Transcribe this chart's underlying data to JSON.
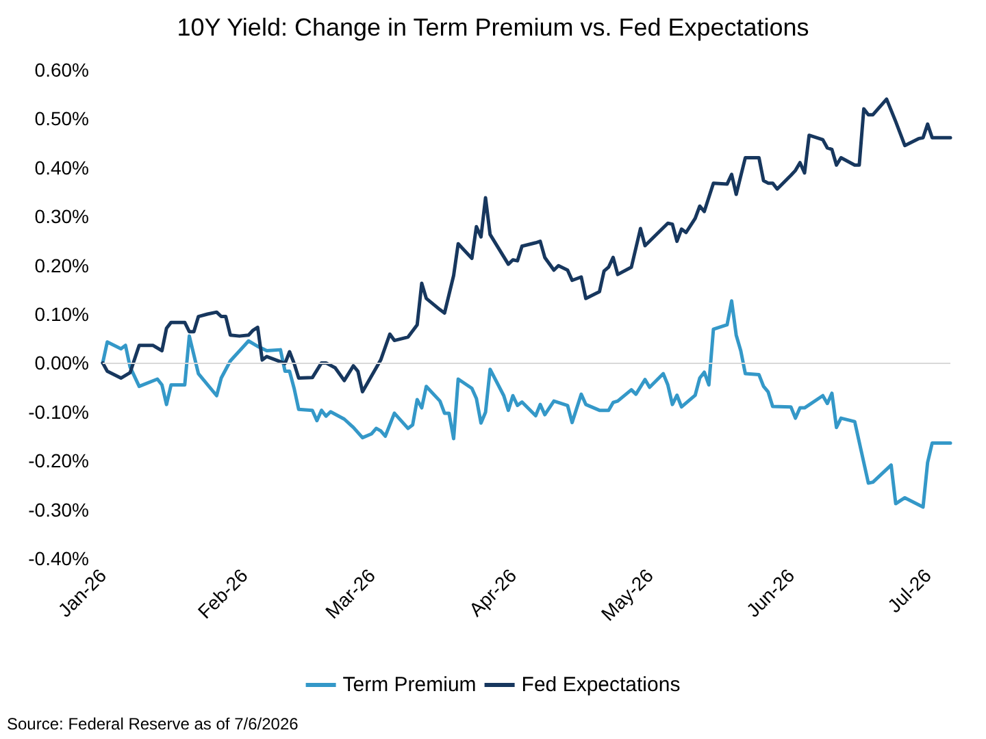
{
  "chart_data": {
    "type": "line",
    "title": "10Y Yield: Change in Term Premium vs. Fed Expectations",
    "annotations": [
      "Source: Federal Reserve as of 7/6/2026"
    ],
    "xlim": [
      "2026-01-01",
      "2026-07-06"
    ],
    "xticks": [
      {
        "value": "2026-01-01",
        "label": "Jan-26"
      },
      {
        "value": "2026-02-01",
        "label": "Feb-26"
      },
      {
        "value": "2026-03-01",
        "label": "Mar-26"
      },
      {
        "value": "2026-04-01",
        "label": "Apr-26"
      },
      {
        "value": "2026-05-01",
        "label": "May-26"
      },
      {
        "value": "2026-06-01",
        "label": "Jun-26"
      },
      {
        "value": "2026-07-01",
        "label": "Jul-26"
      }
    ],
    "ylim": [
      -0.4,
      0.6
    ],
    "yticks": [
      {
        "value": -0.4,
        "label": "-0.40%"
      },
      {
        "value": -0.3,
        "label": "-0.30%"
      },
      {
        "value": -0.2,
        "label": "-0.20%"
      },
      {
        "value": -0.1,
        "label": "-0.10%"
      },
      {
        "value": 0,
        "label": "0.00%"
      },
      {
        "value": 0.1,
        "label": "0.10%"
      },
      {
        "value": 0.2,
        "label": "0.20%"
      },
      {
        "value": 0.3,
        "label": "0.30%"
      },
      {
        "value": 0.4,
        "label": "0.40%"
      },
      {
        "value": 0.5,
        "label": "0.50%"
      },
      {
        "value": 0.6,
        "label": "0.60%"
      }
    ],
    "ref_lines": [
      {
        "axis": "y",
        "value": 0,
        "color": "#d9d9d9",
        "line_style": "solid"
      }
    ],
    "grid": false,
    "legend": "bottom",
    "marker": "none",
    "line_style": "solid",
    "series": [
      {
        "name": "Term Premium",
        "color": "#3498c8",
        "x": [
          "2026-01-01",
          "2026-01-02",
          "2026-01-05",
          "2026-01-06",
          "2026-01-07",
          "2026-01-09",
          "2026-01-13",
          "2026-01-14",
          "2026-01-15",
          "2026-01-16",
          "2026-01-19",
          "2026-01-20",
          "2026-01-22",
          "2026-01-26",
          "2026-01-27",
          "2026-01-29",
          "2026-02-02",
          "2026-02-04",
          "2026-02-06",
          "2026-02-09",
          "2026-02-10",
          "2026-02-11",
          "2026-02-12",
          "2026-02-13",
          "2026-02-16",
          "2026-02-17",
          "2026-02-18",
          "2026-02-19",
          "2026-02-20",
          "2026-02-23",
          "2026-02-25",
          "2026-02-27",
          "2026-03-01",
          "2026-03-02",
          "2026-03-03",
          "2026-03-04",
          "2026-03-06",
          "2026-03-09",
          "2026-03-10",
          "2026-03-11",
          "2026-03-12",
          "2026-03-13",
          "2026-03-16",
          "2026-03-17",
          "2026-03-18",
          "2026-03-19",
          "2026-03-20",
          "2026-03-23",
          "2026-03-24",
          "2026-03-25",
          "2026-03-26",
          "2026-03-27",
          "2026-03-30",
          "2026-03-31",
          "2026-04-01",
          "2026-04-02",
          "2026-04-03",
          "2026-04-06",
          "2026-04-07",
          "2026-04-08",
          "2026-04-10",
          "2026-04-13",
          "2026-04-14",
          "2026-04-16",
          "2026-04-17",
          "2026-04-20",
          "2026-04-22",
          "2026-04-23",
          "2026-04-24",
          "2026-04-27",
          "2026-04-28",
          "2026-04-30",
          "2026-05-01",
          "2026-05-04",
          "2026-05-05",
          "2026-05-06",
          "2026-05-07",
          "2026-05-08",
          "2026-05-11",
          "2026-05-12",
          "2026-05-13",
          "2026-05-14",
          "2026-05-15",
          "2026-05-18",
          "2026-05-19",
          "2026-05-20",
          "2026-05-21",
          "2026-05-22",
          "2026-05-25",
          "2026-05-26",
          "2026-05-27",
          "2026-05-28",
          "2026-06-01",
          "2026-06-02",
          "2026-06-03",
          "2026-06-04",
          "2026-06-08",
          "2026-06-09",
          "2026-06-10",
          "2026-06-11",
          "2026-06-12",
          "2026-06-15",
          "2026-06-18",
          "2026-06-19",
          "2026-06-23",
          "2026-06-24",
          "2026-06-26",
          "2026-06-30",
          "2026-07-01",
          "2026-07-02",
          "2026-07-06"
        ],
        "values": [
          0.0,
          0.043,
          0.029,
          0.036,
          -0.008,
          -0.048,
          -0.033,
          -0.045,
          -0.085,
          -0.045,
          -0.045,
          0.055,
          -0.022,
          -0.067,
          -0.031,
          0.004,
          0.045,
          0.034,
          0.025,
          0.027,
          -0.017,
          -0.017,
          -0.052,
          -0.095,
          -0.097,
          -0.118,
          -0.097,
          -0.109,
          -0.1,
          -0.115,
          -0.132,
          -0.153,
          -0.145,
          -0.134,
          -0.139,
          -0.15,
          -0.103,
          -0.134,
          -0.127,
          -0.075,
          -0.092,
          -0.048,
          -0.078,
          -0.103,
          -0.103,
          -0.155,
          -0.033,
          -0.052,
          -0.073,
          -0.123,
          -0.101,
          -0.013,
          -0.067,
          -0.097,
          -0.067,
          -0.087,
          -0.08,
          -0.108,
          -0.085,
          -0.106,
          -0.078,
          -0.087,
          -0.122,
          -0.064,
          -0.085,
          -0.097,
          -0.097,
          -0.081,
          -0.078,
          -0.055,
          -0.064,
          -0.034,
          -0.05,
          -0.022,
          -0.045,
          -0.085,
          -0.066,
          -0.09,
          -0.066,
          -0.031,
          -0.019,
          -0.045,
          0.069,
          0.078,
          0.127,
          0.057,
          0.025,
          -0.022,
          -0.024,
          -0.048,
          -0.059,
          -0.089,
          -0.09,
          -0.113,
          -0.092,
          -0.092,
          -0.067,
          -0.083,
          -0.062,
          -0.132,
          -0.113,
          -0.12,
          -0.246,
          -0.244,
          -0.209,
          -0.288,
          -0.276,
          -0.295,
          -0.204,
          -0.164,
          -0.164
        ]
      },
      {
        "name": "Fed Expectations",
        "color": "#17375e",
        "x": [
          "2026-01-01",
          "2026-01-02",
          "2026-01-05",
          "2026-01-07",
          "2026-01-09",
          "2026-01-12",
          "2026-01-14",
          "2026-01-15",
          "2026-01-16",
          "2026-01-19",
          "2026-01-20",
          "2026-01-21",
          "2026-01-22",
          "2026-01-24",
          "2026-01-26",
          "2026-01-27",
          "2026-01-28",
          "2026-01-29",
          "2026-01-31",
          "2026-02-02",
          "2026-02-03",
          "2026-02-04",
          "2026-02-05",
          "2026-02-06",
          "2026-02-10",
          "2026-02-11",
          "2026-02-12",
          "2026-02-13",
          "2026-02-16",
          "2026-02-18",
          "2026-02-19",
          "2026-02-21",
          "2026-02-23",
          "2026-02-25",
          "2026-02-26",
          "2026-02-27",
          "2026-03-03",
          "2026-03-05",
          "2026-03-06",
          "2026-03-09",
          "2026-03-11",
          "2026-03-12",
          "2026-03-13",
          "2026-03-16",
          "2026-03-17",
          "2026-03-19",
          "2026-03-20",
          "2026-03-23",
          "2026-03-24",
          "2026-03-25",
          "2026-03-26",
          "2026-03-27",
          "2026-03-31",
          "2026-04-01",
          "2026-04-02",
          "2026-04-03",
          "2026-04-06",
          "2026-04-07",
          "2026-04-08",
          "2026-04-10",
          "2026-04-11",
          "2026-04-13",
          "2026-04-14",
          "2026-04-16",
          "2026-04-17",
          "2026-04-20",
          "2026-04-21",
          "2026-04-22",
          "2026-04-23",
          "2026-04-24",
          "2026-04-27",
          "2026-04-29",
          "2026-04-30",
          "2026-05-05",
          "2026-05-06",
          "2026-05-07",
          "2026-05-08",
          "2026-05-09",
          "2026-05-11",
          "2026-05-12",
          "2026-05-13",
          "2026-05-15",
          "2026-05-18",
          "2026-05-19",
          "2026-05-20",
          "2026-05-22",
          "2026-05-25",
          "2026-05-26",
          "2026-05-27",
          "2026-05-28",
          "2026-05-29",
          "2026-06-01",
          "2026-06-02",
          "2026-06-03",
          "2026-06-04",
          "2026-06-05",
          "2026-06-08",
          "2026-06-09",
          "2026-06-10",
          "2026-06-11",
          "2026-06-12",
          "2026-06-15",
          "2026-06-16",
          "2026-06-17",
          "2026-06-18",
          "2026-06-19",
          "2026-06-22",
          "2026-06-24",
          "2026-06-26",
          "2026-06-29",
          "2026-06-30",
          "2026-07-01",
          "2026-07-02",
          "2026-07-06"
        ],
        "values": [
          0.0,
          -0.017,
          -0.031,
          -0.02,
          0.036,
          0.036,
          0.025,
          0.071,
          0.083,
          0.083,
          0.064,
          0.064,
          0.095,
          0.1,
          0.104,
          0.095,
          0.095,
          0.057,
          0.055,
          0.057,
          0.067,
          0.073,
          0.006,
          0.013,
          -0.001,
          0.023,
          -0.001,
          -0.031,
          -0.03,
          0.0,
          0.0,
          -0.01,
          -0.036,
          -0.006,
          -0.017,
          -0.059,
          0.006,
          0.059,
          0.046,
          0.053,
          0.078,
          0.163,
          0.132,
          0.109,
          0.102,
          0.179,
          0.244,
          0.214,
          0.279,
          0.258,
          0.338,
          0.263,
          0.202,
          0.211,
          0.209,
          0.239,
          0.246,
          0.249,
          0.216,
          0.19,
          0.199,
          0.19,
          0.169,
          0.176,
          0.132,
          0.146,
          0.188,
          0.196,
          0.216,
          0.181,
          0.196,
          0.275,
          0.24,
          0.286,
          0.284,
          0.249,
          0.274,
          0.267,
          0.296,
          0.321,
          0.31,
          0.368,
          0.366,
          0.386,
          0.345,
          0.42,
          0.42,
          0.373,
          0.368,
          0.368,
          0.356,
          0.384,
          0.394,
          0.41,
          0.389,
          0.466,
          0.457,
          0.44,
          0.437,
          0.405,
          0.42,
          0.405,
          0.405,
          0.52,
          0.508,
          0.508,
          0.54,
          0.494,
          0.445,
          0.459,
          0.461,
          0.489,
          0.461,
          0.461
        ]
      }
    ]
  }
}
